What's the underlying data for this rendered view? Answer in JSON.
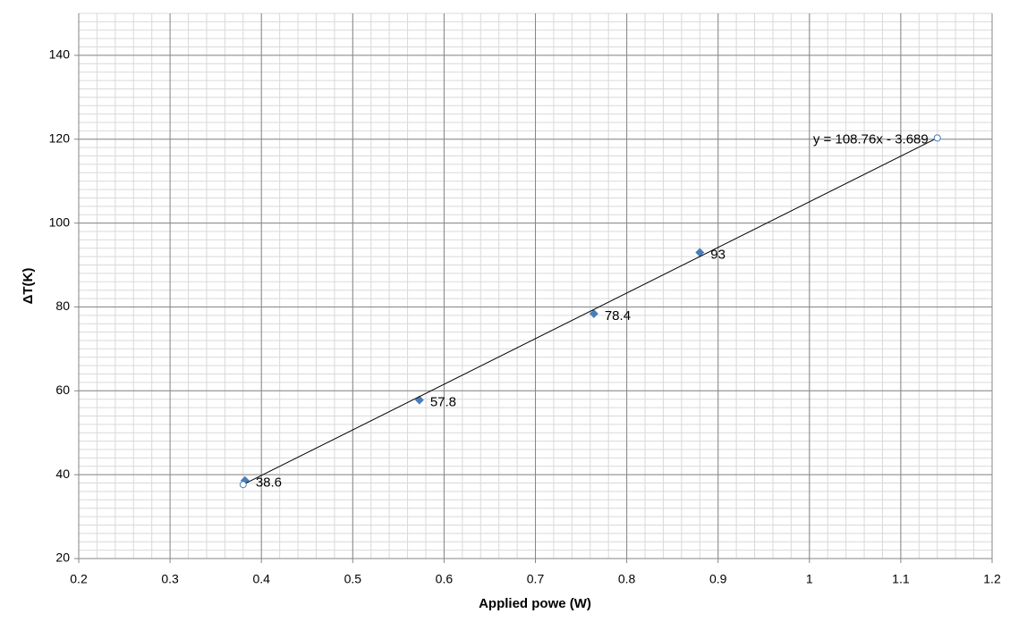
{
  "chart_data": {
    "type": "scatter",
    "x_label": "Applied powe (W)",
    "y_label": "ΔT(K)",
    "annotation": "y = 108.76x - 3.689",
    "xlim": [
      0.2,
      1.2
    ],
    "xticks": [
      0.2,
      0.3,
      0.4,
      0.5,
      0.6,
      0.7,
      0.8,
      0.9,
      1,
      1.1,
      1.2
    ],
    "ylim": [
      20,
      150
    ],
    "yticks": [
      20,
      40,
      60,
      80,
      100,
      120,
      140
    ],
    "grid": true,
    "x_minor": 0.02,
    "y_minor": 2,
    "series": [
      {
        "color": "#4a7ebb",
        "marker": "diamond",
        "line": false,
        "data_labels": true,
        "x": [
          0.382,
          0.573,
          0.764,
          0.88
        ],
        "values": [
          38.6,
          57.8,
          78.4,
          93
        ]
      },
      {
        "color": "#4a7ebb",
        "line_color": "#000000",
        "marker": "circle-open",
        "line": true,
        "data_labels": false,
        "x": [
          0.38,
          1.14
        ],
        "values": [
          37.64,
          120.3
        ]
      }
    ]
  }
}
